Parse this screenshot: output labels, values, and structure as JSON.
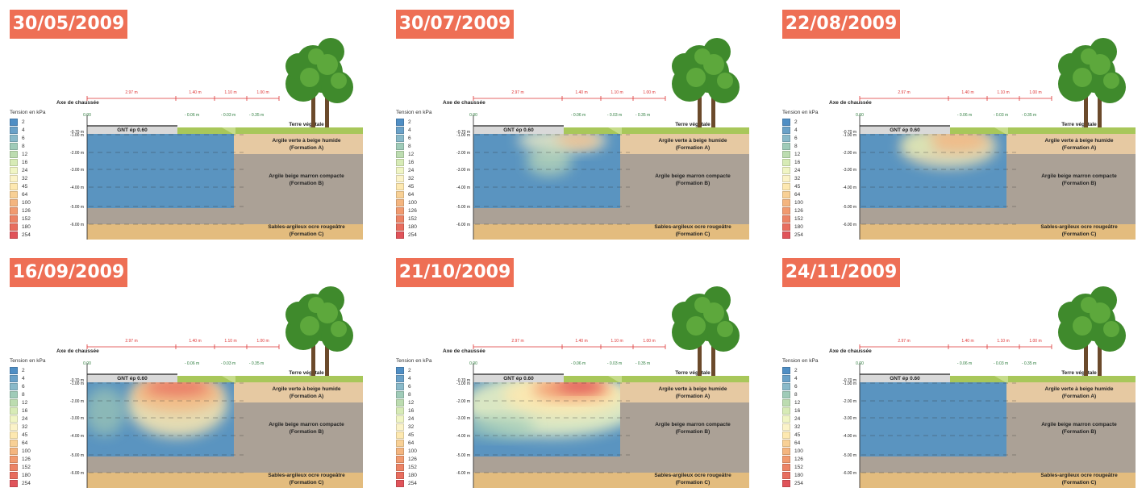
{
  "legend": {
    "title": "Tension en kPa",
    "items": [
      {
        "label": "2",
        "color": "#4f8ec4"
      },
      {
        "label": "4",
        "color": "#6aa1c8"
      },
      {
        "label": "6",
        "color": "#89b9c9"
      },
      {
        "label": "8",
        "color": "#9fcbb8"
      },
      {
        "label": "12",
        "color": "#bcdcb0"
      },
      {
        "label": "16",
        "color": "#d7ebb6"
      },
      {
        "label": "24",
        "color": "#f0f5c4"
      },
      {
        "label": "32",
        "color": "#fbf3c8"
      },
      {
        "label": "45",
        "color": "#fde8b0"
      },
      {
        "label": "64",
        "color": "#f8d095"
      },
      {
        "label": "100",
        "color": "#f4b57f"
      },
      {
        "label": "126",
        "color": "#f19a6f"
      },
      {
        "label": "152",
        "color": "#ec8365"
      },
      {
        "label": "180",
        "color": "#e86d5e"
      },
      {
        "label": "254",
        "color": "#e0535a"
      }
    ]
  },
  "section": {
    "road_axis": "Axe de chaussée",
    "gnt_label": "GNT ép 0.60",
    "topsoil": "Terre végétale",
    "layer_a": [
      "Argile verte à beige humide",
      "(Formation A)"
    ],
    "layer_b": [
      "Argile beige marron compacte",
      "(Formation B)"
    ],
    "layer_c": [
      "Sables-argileux ocre rougeâtre",
      "(Formation C)"
    ],
    "widths": [
      "2.97 m",
      "1.40 m",
      "1.10 m",
      "1.00 m"
    ],
    "offsets": [
      "0.00",
      "- 0.06 m",
      "- 0.03 m",
      "- 0.35 m"
    ],
    "depths": [
      "-0.70 m",
      "-1.00 m",
      "-2.00 m",
      "-3.00 m",
      "-4.00 m",
      "-5.00 m",
      "-6.00 m"
    ]
  },
  "panels": [
    {
      "date": "30/05/2009",
      "state": "wet"
    },
    {
      "date": "30/07/2009",
      "state": "mid"
    },
    {
      "date": "22/08/2009",
      "state": "dry"
    },
    {
      "date": "16/09/2009",
      "state": "drier"
    },
    {
      "date": "21/10/2009",
      "state": "driest"
    },
    {
      "date": "24/11/2009",
      "state": "wet"
    }
  ]
}
